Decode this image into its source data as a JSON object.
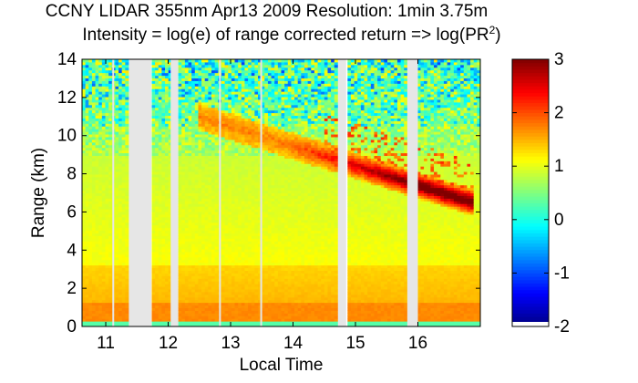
{
  "chart_data": {
    "type": "heatmap",
    "title_line1": "CCNY LIDAR 355nm Apr13 2009 Resolution: 1min 3.75m",
    "title_line2_prefix": "Intensity = log(e) of range corrected return => log(PR",
    "title_line2_sup": "2",
    "title_line2_suffix": ")",
    "xlabel": "Local Time",
    "ylabel": "Range (km)",
    "xlim": [
      10.62,
      17.0
    ],
    "ylim": [
      0,
      14
    ],
    "x_ticks": [
      11,
      12,
      13,
      14,
      15,
      16
    ],
    "x_tick_labels": [
      "11",
      "12",
      "13",
      "14",
      "15",
      "16"
    ],
    "y_ticks": [
      0,
      2,
      4,
      6,
      8,
      10,
      12,
      14
    ],
    "y_tick_labels": [
      "0",
      "2",
      "4",
      "6",
      "8",
      "10",
      "12",
      "14"
    ],
    "colorbar": {
      "colormap": "jet",
      "clim": [
        -2,
        3
      ],
      "ticks": [
        -2,
        -1,
        0,
        1,
        2,
        3
      ],
      "tick_labels": [
        "-2",
        "-1",
        "0",
        "1",
        "2",
        "3"
      ]
    },
    "data_gaps_local_time": [
      [
        11.37,
        11.73
      ],
      [
        12.04,
        12.16
      ],
      [
        14.72,
        14.85
      ],
      [
        15.83,
        16.0
      ]
    ],
    "thin_gaps_local_time": [
      11.12,
      11.7,
      12.83,
      13.49
    ],
    "features": [
      {
        "label": "aerosol layer",
        "range_km": [
          0,
          3.2
        ],
        "value": 1.5
      },
      {
        "label": "descending cloud layer",
        "time": [
          12.5,
          16.9
        ],
        "range_km_start": 11.0,
        "range_km_end": 6.5,
        "peak_value": 3.0
      }
    ]
  }
}
